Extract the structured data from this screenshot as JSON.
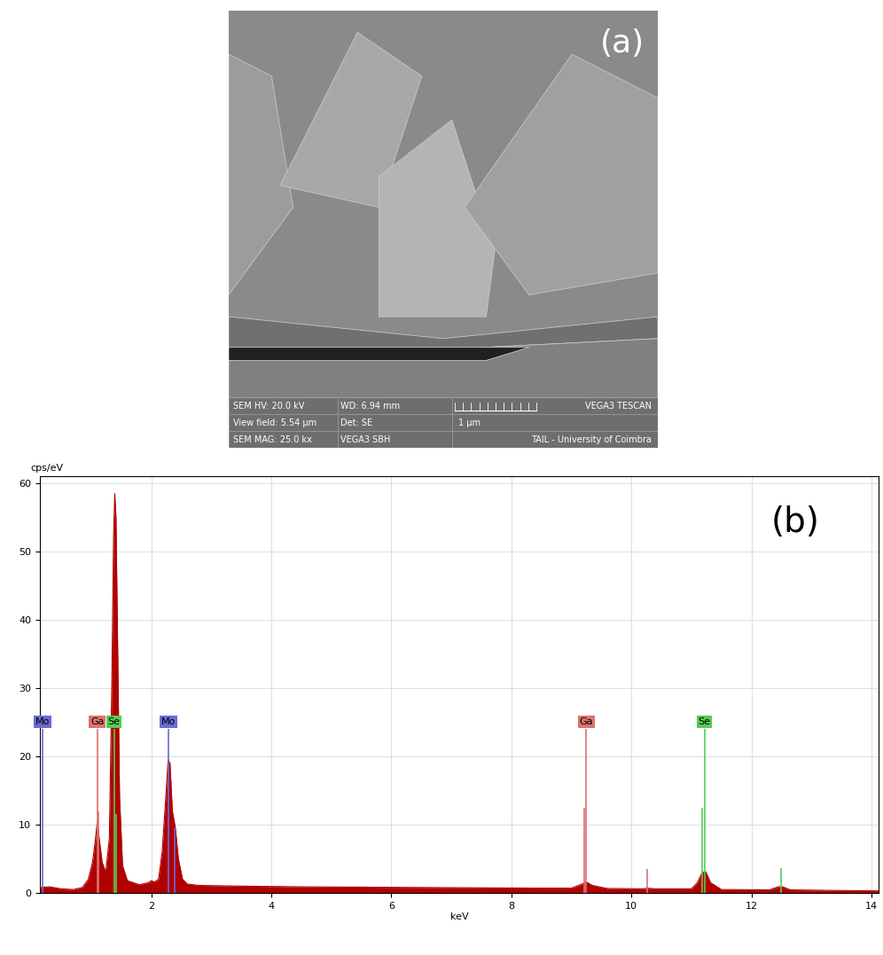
{
  "image": {
    "panel_label": "(a)",
    "info_bar": {
      "cells": [
        [
          "SEM HV: 20.0 kV",
          "WD: 6.94 mm"
        ],
        [
          "View field: 5.54 µm",
          "Det: SE"
        ],
        [
          "SEM MAG: 25.0 kx",
          "VEGA3 SBH"
        ]
      ],
      "scale_bar": "1 µm",
      "brand": "VEGA3 TESCAN",
      "credit": "TAIL - University of Coimbra"
    }
  },
  "chart_data": {
    "type": "area",
    "panel_label": "(b)",
    "y_label": "cps/eV",
    "x_label": "keV",
    "color": "#b00000",
    "x": [
      0.14,
      0.3,
      0.5,
      0.7,
      0.85,
      0.95,
      1.02,
      1.07,
      1.1,
      1.13,
      1.18,
      1.24,
      1.3,
      1.34,
      1.37,
      1.39,
      1.41,
      1.44,
      1.47,
      1.52,
      1.6,
      1.8,
      1.95,
      2.0,
      2.05,
      2.12,
      2.18,
      2.24,
      2.28,
      2.31,
      2.35,
      2.4,
      2.45,
      2.52,
      2.6,
      2.8,
      3.5,
      4.5,
      5.5,
      6.5,
      7.5,
      8.5,
      9.0,
      9.15,
      9.25,
      9.35,
      9.6,
      10.2,
      10.26,
      10.4,
      11.0,
      11.1,
      11.18,
      11.24,
      11.32,
      11.5,
      12.3,
      12.45,
      12.52,
      12.65,
      13.5,
      14.12
    ],
    "values": [
      0.8,
      0.9,
      0.6,
      0.5,
      0.8,
      2,
      4.5,
      8,
      10.5,
      8,
      4.5,
      3,
      8,
      30,
      52,
      58.5,
      55,
      35,
      14,
      4,
      1.8,
      1.2,
      1.5,
      1.8,
      1.6,
      2,
      6,
      14,
      19.5,
      19,
      12,
      9.5,
      5,
      2,
      1.3,
      1.1,
      1,
      0.9,
      0.85,
      0.8,
      0.75,
      0.7,
      0.7,
      1.2,
      1.6,
      1.1,
      0.65,
      0.6,
      0.7,
      0.6,
      0.6,
      1.5,
      3.0,
      3.1,
      1.5,
      0.5,
      0.45,
      0.9,
      0.9,
      0.45,
      0.35,
      0.3
    ],
    "xlim": [
      0.14,
      14.12
    ],
    "ylim": [
      0,
      61
    ],
    "xticks": [
      2,
      4,
      6,
      8,
      10,
      12,
      14
    ],
    "yticks": [
      0,
      10,
      20,
      30,
      40,
      50,
      60
    ],
    "grid": true,
    "element_markers": [
      {
        "name": "Mo",
        "color": "#6b6bd6",
        "x": [
          0.19,
          2.29
        ],
        "heights": [
          24,
          24
        ],
        "minor_x": [
          2.39
        ],
        "minor_heights": [
          9.5
        ]
      },
      {
        "name": "Ga",
        "color": "#e07070",
        "x": [
          1.1,
          9.25
        ],
        "heights": [
          24,
          24
        ],
        "minor_x": [
          1.12,
          9.22,
          10.26
        ],
        "minor_heights": [
          12,
          12.5,
          3.5
        ]
      },
      {
        "name": "Se",
        "color": "#55cc55",
        "x": [
          1.38,
          11.22
        ],
        "heights": [
          24,
          24
        ],
        "minor_x": [
          1.42,
          11.18,
          12.5
        ],
        "minor_heights": [
          11.5,
          12.5,
          3.7
        ]
      }
    ]
  }
}
